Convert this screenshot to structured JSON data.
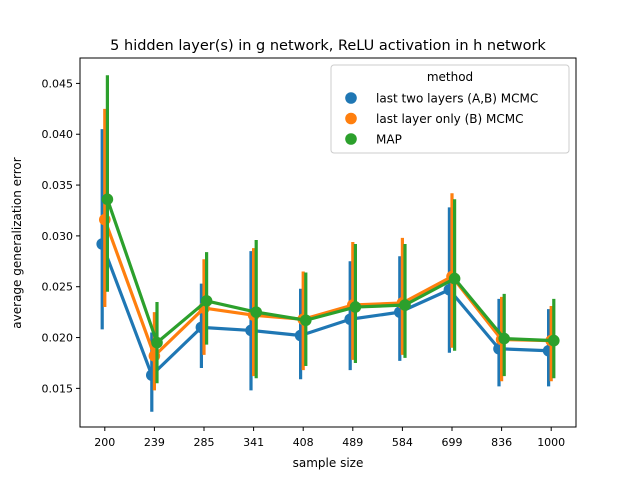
{
  "chart_data": {
    "type": "line",
    "title": "5 hidden layer(s) in g network, ReLU activation in h network",
    "xlabel": "sample size",
    "ylabel": "average generalization error",
    "categories": [
      "200",
      "239",
      "285",
      "341",
      "408",
      "489",
      "584",
      "699",
      "836",
      "1000"
    ],
    "ylim": [
      0.0112,
      0.0475
    ],
    "yticks": [
      0.015,
      0.02,
      0.025,
      0.03,
      0.035,
      0.04,
      0.045
    ],
    "ytick_labels": [
      "0.015",
      "0.020",
      "0.025",
      "0.030",
      "0.035",
      "0.040",
      "0.045"
    ],
    "grid": false,
    "legend": {
      "title": "method",
      "placement": "top-right"
    },
    "series": [
      {
        "name": "last two layers (A,B) MCMC",
        "color": "#1f77b4",
        "values": [
          0.0292,
          0.0163,
          0.021,
          0.0207,
          0.0202,
          0.0218,
          0.0225,
          0.0247,
          0.0189,
          0.0187
        ],
        "ci_low": [
          0.0208,
          0.0127,
          0.017,
          0.0148,
          0.0159,
          0.0168,
          0.0177,
          0.0185,
          0.0152,
          0.0152
        ],
        "ci_high": [
          0.0405,
          0.0205,
          0.0253,
          0.0285,
          0.0248,
          0.0275,
          0.028,
          0.0328,
          0.0238,
          0.0228
        ]
      },
      {
        "name": "last layer only (B) MCMC",
        "color": "#ff7f0e",
        "values": [
          0.0316,
          0.0182,
          0.0229,
          0.0222,
          0.0218,
          0.0232,
          0.0234,
          0.026,
          0.0198,
          0.0197
        ],
        "ci_low": [
          0.023,
          0.0148,
          0.0183,
          0.0162,
          0.0168,
          0.0178,
          0.0183,
          0.019,
          0.0157,
          0.0157
        ],
        "ci_high": [
          0.0425,
          0.0225,
          0.0277,
          0.0288,
          0.0265,
          0.0294,
          0.0298,
          0.0342,
          0.024,
          0.0231
        ]
      },
      {
        "name": "MAP",
        "color": "#2ca02c",
        "values": [
          0.0336,
          0.0195,
          0.0236,
          0.0225,
          0.0217,
          0.023,
          0.0232,
          0.0258,
          0.0199,
          0.0197
        ],
        "ci_low": [
          0.0245,
          0.0155,
          0.0193,
          0.016,
          0.0172,
          0.0175,
          0.018,
          0.0187,
          0.0162,
          0.016
        ],
        "ci_high": [
          0.0458,
          0.0235,
          0.0284,
          0.0296,
          0.0264,
          0.0292,
          0.0292,
          0.0336,
          0.0243,
          0.0238
        ]
      }
    ]
  }
}
